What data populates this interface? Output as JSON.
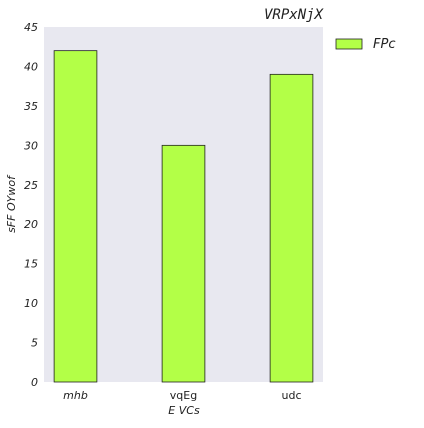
{
  "chart_data": {
    "type": "bar",
    "title": "VRPxNjX",
    "xlabel": "E VCs",
    "ylabel": "sFF OYwof",
    "categories": [
      "mhb",
      "vqEg",
      "udc"
    ],
    "series": [
      {
        "name": "FPc",
        "values": [
          42,
          30,
          39
        ],
        "color": "#b3ff47"
      }
    ],
    "ylim": [
      0,
      45
    ],
    "yticks": [
      0,
      5,
      10,
      15,
      20,
      25,
      30,
      35,
      40,
      45
    ],
    "grid": false,
    "legend_position": "outside-top-right",
    "plot_background": "#e8e8f0",
    "bar_edge_color": "#222222"
  }
}
